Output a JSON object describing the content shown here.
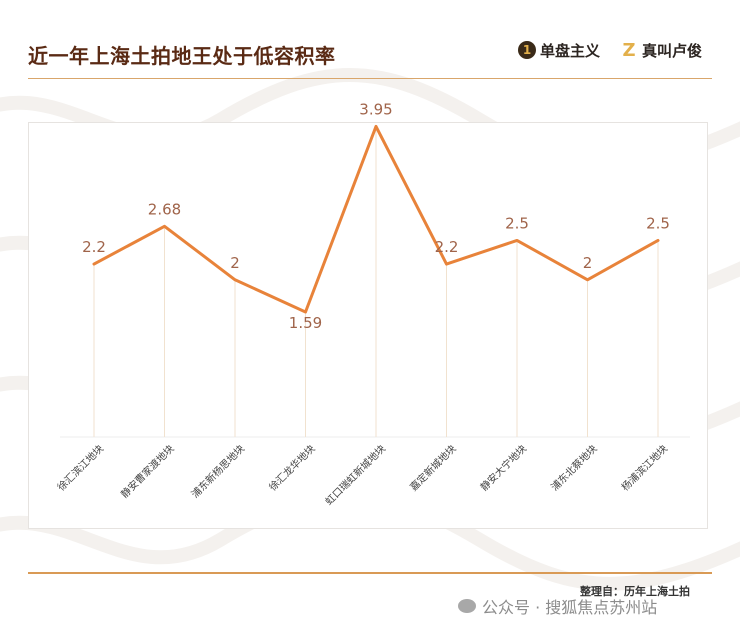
{
  "header": {
    "title": "近一年上海土拍地王处于低容积率",
    "brand1_logo": "1",
    "brand1_name": "单盘主义",
    "brand2_logo": "Z",
    "brand2_name": "真叫卢俊"
  },
  "footer": {
    "source": "整理自：历年上海土拍",
    "watermark": "公众号 · 搜狐焦点苏州站"
  },
  "colors": {
    "line": "#e8833a",
    "title": "#5a2a14",
    "rule": "#d9a66b",
    "grid": "#f1e2cf",
    "label": "#a0644a"
  },
  "chart_data": {
    "type": "line",
    "categories": [
      "徐汇滨江地块",
      "静安曹家渡地块",
      "浦东新杨思地块",
      "徐汇龙华地块",
      "虹口瑞虹新城地块",
      "嘉定新城地块",
      "静安大宁地块",
      "浦东北蔡地块",
      "杨浦滨江地块"
    ],
    "series": [
      {
        "values": [
          2.2,
          2.68,
          2,
          1.59,
          3.95,
          2.2,
          2.5,
          2,
          2.5
        ]
      }
    ],
    "data_labels": [
      "2.2",
      "2.68",
      "2",
      "1.59",
      "3.95",
      "2.2",
      "2.5",
      "2",
      "2.5"
    ],
    "ylim": [
      0,
      4.35
    ],
    "grid": false,
    "legend": "none"
  }
}
